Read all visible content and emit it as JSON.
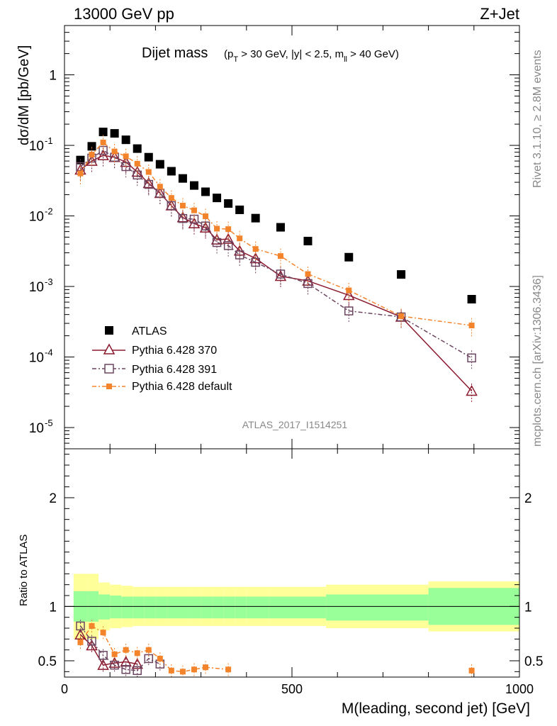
{
  "header": {
    "left": "13000 GeV pp",
    "right": "Z+Jet"
  },
  "side_text": {
    "top": "Rivet 3.1.10, ≥ 2.8M events",
    "bottom": "mcplots.cern.ch [arXiv:1306.3436]"
  },
  "watermark": "ATLAS_2017_I1514251",
  "main_title": {
    "main": "Dijet mass",
    "cuts": "(p_T > 30 GeV, |y| < 2.5, m_ll > 40 GeV)"
  },
  "colors": {
    "atlas": "#000000",
    "p370": "#8b1a2e",
    "p391": "#6b4560",
    "pdef": "#f4842c",
    "band_inner": "#99ff99",
    "band_outer": "#ffff99"
  },
  "chart_data": [
    {
      "type": "scatter",
      "panel": "main",
      "ylabel": "dσ/dM [pb/GeV]",
      "yscale": "log",
      "ylim": [
        5e-06,
        5
      ],
      "xlim": [
        0,
        1000
      ],
      "yticks": [
        {
          "value": 1e-05,
          "label": "10",
          "exp": "-5"
        },
        {
          "value": 0.0001,
          "label": "10",
          "exp": "-4"
        },
        {
          "value": 0.001,
          "label": "10",
          "exp": "-3"
        },
        {
          "value": 0.01,
          "label": "10",
          "exp": "-2"
        },
        {
          "value": 0.1,
          "label": "10",
          "exp": "-1"
        },
        {
          "value": 1,
          "label": "1",
          "exp": ""
        }
      ],
      "series": [
        {
          "name": "ATLAS",
          "key": "atlas",
          "marker": "square-filled",
          "x": [
            35,
            60,
            85,
            110,
            135,
            160,
            185,
            210,
            235,
            260,
            285,
            310,
            335,
            360,
            385,
            420,
            475,
            535,
            625,
            740,
            895
          ],
          "y": [
            0.062,
            0.097,
            0.155,
            0.148,
            0.12,
            0.09,
            0.068,
            0.054,
            0.043,
            0.034,
            0.027,
            0.022,
            0.018,
            0.015,
            0.0122,
            0.0093,
            0.0069,
            0.0044,
            0.0026,
            0.00148,
            0.00066
          ]
        },
        {
          "name": "Pythia 6.428 370",
          "key": "p370",
          "marker": "triangle-open",
          "line": "solid",
          "x": [
            35,
            60,
            85,
            110,
            135,
            160,
            185,
            210,
            235,
            260,
            285,
            310,
            335,
            360,
            385,
            420,
            475,
            535,
            625,
            740,
            895
          ],
          "y": [
            0.045,
            0.06,
            0.072,
            0.068,
            0.058,
            0.042,
            0.029,
            0.021,
            0.014,
            0.0095,
            0.0078,
            0.0068,
            0.0046,
            0.0047,
            0.0032,
            0.0025,
            0.0014,
            0.0012,
            0.00075,
            0.00037,
            3.3e-05
          ]
        },
        {
          "name": "Pythia 6.428 391",
          "key": "p391",
          "marker": "square-open",
          "line": "dashdot",
          "x": [
            35,
            60,
            85,
            110,
            135,
            160,
            185,
            210,
            235,
            260,
            285,
            310,
            335,
            360,
            385,
            420,
            475,
            535,
            625,
            740,
            895
          ],
          "y": [
            0.05,
            0.066,
            0.085,
            0.068,
            0.05,
            0.038,
            0.028,
            0.021,
            0.014,
            0.0092,
            0.009,
            0.0072,
            0.0042,
            0.0038,
            0.0028,
            0.0022,
            0.0015,
            0.0011,
            0.00045,
            0.00037,
            9.7e-05
          ]
        },
        {
          "name": "Pythia 6.428 default",
          "key": "pdef",
          "marker": "square-filled-small",
          "line": "dashdot",
          "x": [
            35,
            60,
            85,
            110,
            135,
            160,
            185,
            210,
            235,
            260,
            285,
            310,
            335,
            360,
            385,
            420,
            475,
            535,
            625,
            740,
            895
          ],
          "y": [
            0.04,
            0.074,
            0.11,
            0.082,
            0.07,
            0.055,
            0.042,
            0.026,
            0.018,
            0.014,
            0.012,
            0.0099,
            0.0066,
            0.0065,
            0.0048,
            0.0034,
            0.0027,
            0.0015,
            0.00088,
            0.00038,
            0.00028
          ]
        }
      ]
    },
    {
      "type": "scatter",
      "panel": "ratio",
      "ylabel": "Ratio to ATLAS",
      "xlabel": "M(leading, second jet) [GeV]",
      "xlim": [
        0,
        1000
      ],
      "ylim": [
        0.35,
        2.45
      ],
      "xticks": [
        0,
        500,
        1000
      ],
      "yticks": [
        0.5,
        1,
        2
      ],
      "bands": {
        "edges": [
          20,
          50,
          75,
          100,
          125,
          150,
          175,
          200,
          225,
          250,
          275,
          300,
          325,
          350,
          375,
          400,
          450,
          500,
          575,
          800,
          1000
        ],
        "inner_lo": [
          0.86,
          0.86,
          0.88,
          0.89,
          0.89,
          0.89,
          0.89,
          0.89,
          0.89,
          0.89,
          0.89,
          0.89,
          0.89,
          0.89,
          0.89,
          0.89,
          0.89,
          0.89,
          0.87,
          0.83
        ],
        "inner_hi": [
          1.14,
          1.14,
          1.11,
          1.1,
          1.09,
          1.09,
          1.09,
          1.09,
          1.09,
          1.09,
          1.09,
          1.09,
          1.09,
          1.09,
          1.09,
          1.09,
          1.09,
          1.09,
          1.11,
          1.17
        ],
        "outer_lo": [
          0.7,
          0.7,
          0.78,
          0.8,
          0.81,
          0.82,
          0.82,
          0.82,
          0.82,
          0.82,
          0.82,
          0.82,
          0.82,
          0.82,
          0.82,
          0.82,
          0.82,
          0.82,
          0.8,
          0.77
        ],
        "outer_hi": [
          1.3,
          1.3,
          1.22,
          1.2,
          1.19,
          1.18,
          1.18,
          1.18,
          1.18,
          1.18,
          1.18,
          1.18,
          1.18,
          1.18,
          1.18,
          1.18,
          1.18,
          1.18,
          1.2,
          1.23
        ]
      },
      "series": [
        {
          "name": "Pythia 6.428 370",
          "key": "p370",
          "x": [
            35,
            60,
            85,
            110,
            135,
            160
          ],
          "y": [
            0.74,
            0.64,
            0.46,
            0.48,
            0.49,
            0.47
          ]
        },
        {
          "name": "Pythia 6.428 391",
          "key": "p391",
          "x": [
            35,
            60,
            85,
            110,
            135,
            160,
            185,
            210
          ],
          "y": [
            0.82,
            0.68,
            0.55,
            0.46,
            0.42,
            0.41,
            0.52,
            0.47
          ]
        },
        {
          "name": "Pythia 6.428 default",
          "key": "pdef",
          "x": [
            35,
            60,
            85,
            110,
            135,
            160,
            185,
            210,
            235,
            260,
            285,
            310,
            360,
            895
          ],
          "y": [
            0.67,
            0.82,
            0.76,
            0.56,
            0.6,
            0.57,
            0.6,
            0.52,
            0.41,
            0.4,
            0.42,
            0.44,
            0.42,
            0.41
          ]
        }
      ]
    }
  ]
}
